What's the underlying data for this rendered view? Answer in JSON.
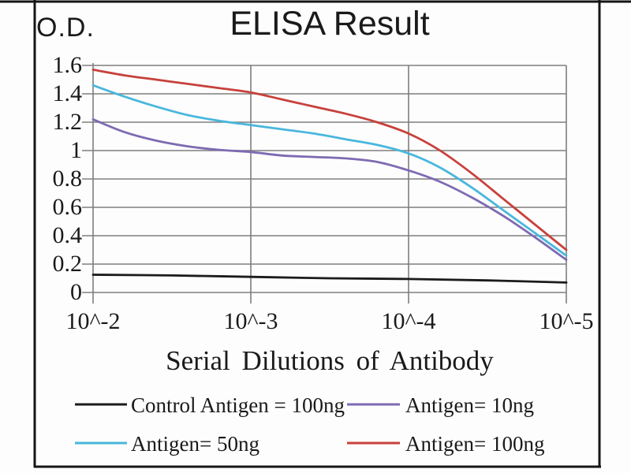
{
  "chart_data": {
    "type": "line",
    "title": "ELISA Result",
    "ylabel": "O.D.",
    "xlabel": "Serial Dilutions of Antibody",
    "x_scale": "log",
    "x_tick_labels": [
      "10^-2",
      "10^-3",
      "10^-4",
      "10^-5"
    ],
    "y_tick_labels": [
      "1.6",
      "1.4",
      "1.2",
      "1",
      "0.8",
      "0.6",
      "0.4",
      "0.2",
      "0"
    ],
    "ylim": [
      0,
      1.6
    ],
    "grid": true,
    "legend_position": "bottom",
    "colors": {
      "gridline": "#7e7e7e",
      "frame": "#151515",
      "text": "#1a1a1a"
    },
    "series": [
      {
        "name": "Control Antigen = 100ng",
        "color": "#1b1b1b",
        "values_at_ticks": [
          0.12,
          0.11,
          0.09,
          0.07
        ],
        "points": [
          [
            0,
            0.125
          ],
          [
            0.5,
            0.12
          ],
          [
            1,
            0.11
          ],
          [
            1.5,
            0.1
          ],
          [
            2,
            0.095
          ],
          [
            2.5,
            0.085
          ],
          [
            3,
            0.07
          ]
        ]
      },
      {
        "name": "Antigen= 10ng",
        "color": "#7e6ab2",
        "values_at_ticks": [
          1.22,
          0.99,
          0.86,
          0.23
        ],
        "points": [
          [
            0,
            1.22
          ],
          [
            0.2,
            1.13
          ],
          [
            0.4,
            1.07
          ],
          [
            0.6,
            1.03
          ],
          [
            0.8,
            1.005
          ],
          [
            1,
            0.99
          ],
          [
            1.2,
            0.965
          ],
          [
            1.4,
            0.955
          ],
          [
            1.6,
            0.945
          ],
          [
            1.8,
            0.92
          ],
          [
            2,
            0.86
          ],
          [
            2.2,
            0.78
          ],
          [
            2.4,
            0.67
          ],
          [
            2.6,
            0.54
          ],
          [
            2.8,
            0.39
          ],
          [
            3,
            0.23
          ]
        ]
      },
      {
        "name": "Antigen= 50ng",
        "color": "#49b7dc",
        "values_at_ticks": [
          1.46,
          1.18,
          0.98,
          0.26
        ],
        "points": [
          [
            0,
            1.46
          ],
          [
            0.2,
            1.38
          ],
          [
            0.4,
            1.31
          ],
          [
            0.6,
            1.25
          ],
          [
            0.8,
            1.21
          ],
          [
            1,
            1.18
          ],
          [
            1.2,
            1.15
          ],
          [
            1.4,
            1.12
          ],
          [
            1.6,
            1.08
          ],
          [
            1.8,
            1.04
          ],
          [
            2,
            0.98
          ],
          [
            2.2,
            0.88
          ],
          [
            2.4,
            0.74
          ],
          [
            2.6,
            0.58
          ],
          [
            2.8,
            0.42
          ],
          [
            3,
            0.26
          ]
        ]
      },
      {
        "name": "Antigen= 100ng",
        "color": "#c7413b",
        "values_at_ticks": [
          1.57,
          1.41,
          1.12,
          0.3
        ],
        "points": [
          [
            0,
            1.57
          ],
          [
            0.2,
            1.53
          ],
          [
            0.4,
            1.5
          ],
          [
            0.6,
            1.47
          ],
          [
            0.8,
            1.44
          ],
          [
            1,
            1.41
          ],
          [
            1.2,
            1.36
          ],
          [
            1.4,
            1.31
          ],
          [
            1.6,
            1.26
          ],
          [
            1.8,
            1.2
          ],
          [
            2,
            1.12
          ],
          [
            2.2,
            1.0
          ],
          [
            2.4,
            0.84
          ],
          [
            2.6,
            0.66
          ],
          [
            2.8,
            0.48
          ],
          [
            3,
            0.3
          ]
        ]
      }
    ],
    "legend_rows": [
      [
        0,
        1
      ],
      [
        2,
        3
      ]
    ]
  }
}
